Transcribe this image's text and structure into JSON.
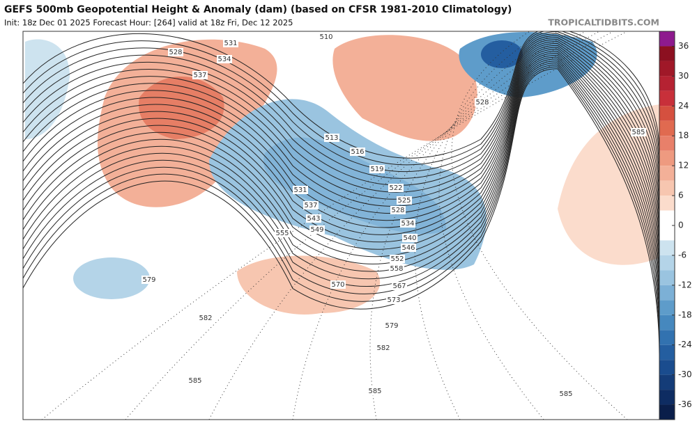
{
  "header": {
    "title": "GEFS 500mb Geopotential Height & Anomaly (dam) (based on CFSR 1981-2010 Climatology)",
    "subtitle": "Init: 18z Dec 01 2025   Forecast Hour: [264]   valid at 18z Fri, Dec 12 2025",
    "source": "TROPICALTIDBITS.COM"
  },
  "colorbar": {
    "lim": [
      -39,
      39
    ],
    "ticks": [
      36,
      30,
      24,
      18,
      12,
      6,
      0,
      -6,
      -12,
      -18,
      -24,
      -30,
      -36
    ],
    "colors": [
      "#8e1a8e",
      "#8c1020",
      "#a01828",
      "#b52232",
      "#c8303a",
      "#d5503f",
      "#e06a50",
      "#e8806a",
      "#ee9a80",
      "#f3b098",
      "#f7c6b0",
      "#fbdccc",
      "#ffffff",
      "#ffffff",
      "#cde3ef",
      "#b4d4e8",
      "#9ac4e0",
      "#7cb0d6",
      "#5e9cca",
      "#4688be",
      "#3272b0",
      "#245ea0",
      "#1a4c8e",
      "#143c78",
      "#0e2c62",
      "#0a1e4a"
    ]
  },
  "contour_labels": [
    528,
    531,
    534,
    537,
    510,
    528,
    585,
    513,
    516,
    519,
    522,
    525,
    528,
    531,
    537,
    543,
    549,
    555,
    534,
    540,
    546,
    552,
    558,
    567,
    570,
    573,
    579,
    579,
    582,
    582,
    585,
    585,
    585
  ]
}
